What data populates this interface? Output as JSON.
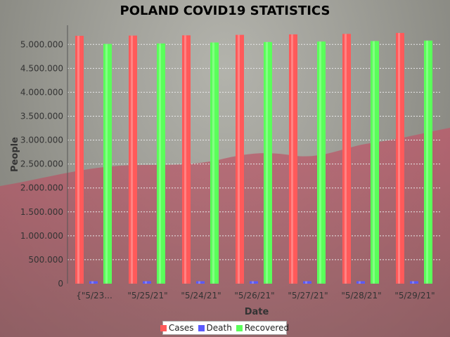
{
  "chart_data": {
    "type": "bar",
    "title": "POLAND COVID19 STATISTICS",
    "xlabel": "Date",
    "ylabel": "People",
    "categories": [
      "{\"5/23...",
      "\"5/25/21\"",
      "\"5/24/21\"",
      "\"5/26/21\"",
      "\"5/27/21\"",
      "\"5/28/21\"",
      "\"5/29/21\""
    ],
    "series": [
      {
        "name": "Cases",
        "color": "#ff5a5a",
        "values": [
          5180000,
          5185000,
          5190000,
          5200000,
          5210000,
          5220000,
          5240000
        ]
      },
      {
        "name": "Death",
        "color": "#5a5aff",
        "values": [
          50000,
          50000,
          50000,
          50000,
          50000,
          50000,
          50000
        ]
      },
      {
        "name": "Recovered",
        "color": "#5aff5a",
        "values": [
          5010000,
          5020000,
          5040000,
          5050000,
          5060000,
          5070000,
          5080000
        ]
      }
    ],
    "ylim": [
      0,
      5400000
    ],
    "yticks": [
      0,
      500000,
      1000000,
      1500000,
      2000000,
      2500000,
      3000000,
      3500000,
      4000000,
      4500000,
      5000000
    ],
    "ytick_labels": [
      "0",
      "500.000",
      "1.000.000",
      "1.500.000",
      "2.000.000",
      "2.500.000",
      "3.000.000",
      "3.500.000",
      "4.000.000",
      "4.500.000",
      "5.000.000"
    ],
    "grid": true,
    "legend_position": "bottom"
  }
}
